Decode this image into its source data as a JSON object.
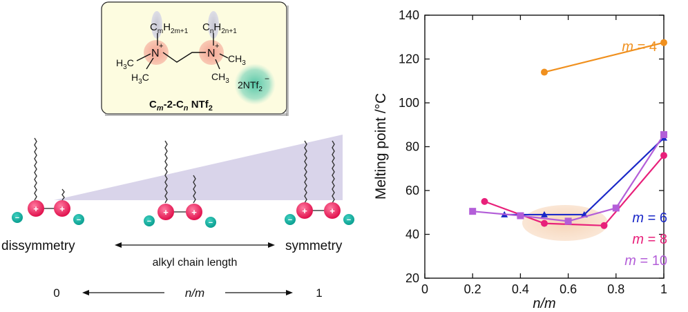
{
  "structure": {
    "sub_m": "m",
    "sub_2m1": "2m+1",
    "sub_n": "n",
    "sub_2n1": "2n+1",
    "charge_plus": "+",
    "charge_minus": "−",
    "h3c": "H",
    "c": "C",
    "h": "H",
    "n_atom": "N",
    "three": "3",
    "ch": "CH",
    "anion": "2NTf",
    "anion_sub": "2",
    "caption_c": "C",
    "caption_m": "m",
    "caption_mid": "-2-C",
    "caption_n": "n",
    "caption_tail": " NTf",
    "caption_sub": "2"
  },
  "scheme": {
    "left_label": "dissymmetry",
    "right_label": "symmetry",
    "arrow_label": "alkyl chain length",
    "axis_left": "0",
    "axis_mid": "n/m",
    "axis_right": "1"
  },
  "chart_data": {
    "type": "line",
    "xlabel": "n/m",
    "ylabel": "Melting point /°C",
    "xlim": [
      0,
      1.0
    ],
    "ylim": [
      20,
      140
    ],
    "x_ticks": [
      "0",
      "0.2",
      "0.4",
      "0.6",
      "0.8",
      "1"
    ],
    "y_ticks": [
      "20",
      "40",
      "60",
      "80",
      "100",
      "120",
      "140"
    ],
    "series": [
      {
        "name": "m = 4",
        "label_m": "m",
        "label_rest": " = 4",
        "color": "#f0901e",
        "marker": "circle",
        "x": [
          0.5,
          1.0
        ],
        "y": [
          114,
          127.5
        ]
      },
      {
        "name": "m = 6",
        "label_m": "m",
        "label_rest": " = 6",
        "color": "#1a28c8",
        "marker": "triangle",
        "x": [
          0.333,
          0.5,
          0.667,
          1.0
        ],
        "y": [
          49,
          49,
          49,
          84
        ]
      },
      {
        "name": "m = 8",
        "label_m": "m",
        "label_rest": " = 8",
        "color": "#e8207a",
        "marker": "circle",
        "x": [
          0.25,
          0.5,
          0.75,
          1.0
        ],
        "y": [
          55,
          45,
          44,
          76
        ]
      },
      {
        "name": "m = 10",
        "label_m": "m",
        "label_rest": " = 10",
        "color": "#b35ed8",
        "marker": "square",
        "x": [
          0.2,
          0.4,
          0.6,
          0.8,
          1.0
        ],
        "y": [
          50.5,
          48.5,
          46,
          52,
          85.5
        ]
      }
    ]
  }
}
